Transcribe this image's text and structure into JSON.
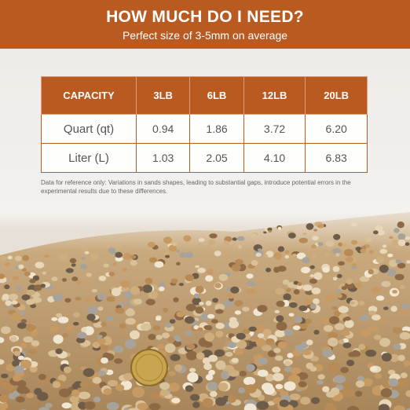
{
  "header": {
    "title": "HOW MUCH DO I NEED?",
    "subtitle": "Perfect size of 3-5mm on average"
  },
  "table": {
    "columns": [
      "CAPACITY",
      "3LB",
      "6LB",
      "12LB",
      "20LB"
    ],
    "rows": [
      [
        "Quart (qt)",
        "0.94",
        "1.86",
        "3.72",
        "6.20"
      ],
      [
        "Liter (L)",
        "1.03",
        "2.05",
        "4.10",
        "6.83"
      ]
    ]
  },
  "note": "Data for reference only: Variations in sands shapes, leading to substantial gaps, introduce potential errors in the experimental results due to these differences."
}
